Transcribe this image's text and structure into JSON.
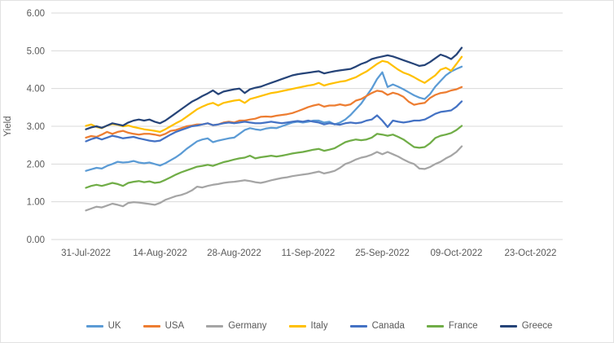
{
  "chart_data": {
    "type": "line",
    "title": "",
    "xlabel": "",
    "ylabel": "Yield",
    "grid": "horizontal",
    "legend_position": "bottom",
    "ylim": [
      0.0,
      6.0
    ],
    "y_tick_values": [
      0.0,
      1.0,
      2.0,
      3.0,
      4.0,
      5.0,
      6.0
    ],
    "y_tick_labels": [
      "0.00",
      "1.00",
      "2.00",
      "3.00",
      "4.00",
      "5.00",
      "6.00"
    ],
    "x_tick_labels": [
      "31-Jul-2022",
      "14-Aug-2022",
      "28-Aug-2022",
      "11-Sep-2022",
      "25-Sep-2022",
      "09-Oct-2022",
      "23-Oct-2022"
    ],
    "x_tick_day_offsets": [
      0,
      14,
      28,
      42,
      56,
      70,
      84
    ],
    "start_date": "31-Jul-2022",
    "sampling": "daily (day offsets 0-71 from 31-Jul-2022 to 10-Oct-2022)",
    "series": [
      {
        "name": "UK",
        "color": "#5B9BD5",
        "values": [
          1.82,
          1.86,
          1.9,
          1.88,
          1.95,
          2.0,
          2.06,
          2.04,
          2.05,
          2.08,
          2.04,
          2.02,
          2.04,
          2.0,
          1.96,
          2.02,
          2.1,
          2.18,
          2.28,
          2.4,
          2.5,
          2.6,
          2.65,
          2.68,
          2.58,
          2.62,
          2.65,
          2.68,
          2.7,
          2.8,
          2.9,
          2.95,
          2.92,
          2.9,
          2.94,
          2.96,
          2.95,
          3.0,
          3.05,
          3.1,
          3.12,
          3.1,
          3.12,
          3.15,
          3.15,
          3.1,
          3.12,
          3.05,
          3.1,
          3.18,
          3.3,
          3.45,
          3.6,
          3.8,
          4.0,
          4.25,
          4.43,
          4.04,
          4.11,
          4.05,
          3.98,
          3.9,
          3.82,
          3.76,
          3.72,
          3.85,
          4.05,
          4.2,
          4.35,
          4.45,
          4.52,
          4.58
        ]
      },
      {
        "name": "USA",
        "color": "#ED7D31",
        "values": [
          2.7,
          2.74,
          2.72,
          2.78,
          2.85,
          2.8,
          2.85,
          2.88,
          2.83,
          2.8,
          2.78,
          2.8,
          2.8,
          2.78,
          2.75,
          2.8,
          2.88,
          2.9,
          2.95,
          3.0,
          3.02,
          3.05,
          3.05,
          3.08,
          3.03,
          3.05,
          3.1,
          3.12,
          3.1,
          3.15,
          3.15,
          3.18,
          3.2,
          3.25,
          3.26,
          3.25,
          3.28,
          3.3,
          3.32,
          3.35,
          3.4,
          3.45,
          3.51,
          3.55,
          3.58,
          3.52,
          3.55,
          3.55,
          3.58,
          3.55,
          3.58,
          3.68,
          3.72,
          3.8,
          3.88,
          3.94,
          3.92,
          3.83,
          3.89,
          3.85,
          3.78,
          3.65,
          3.57,
          3.6,
          3.62,
          3.75,
          3.83,
          3.88,
          3.9,
          3.95,
          3.98,
          4.04
        ]
      },
      {
        "name": "Germany",
        "color": "#A5A5A5",
        "values": [
          0.77,
          0.82,
          0.87,
          0.85,
          0.9,
          0.95,
          0.92,
          0.88,
          0.97,
          0.99,
          0.98,
          0.96,
          0.94,
          0.92,
          0.97,
          1.05,
          1.1,
          1.15,
          1.18,
          1.23,
          1.3,
          1.4,
          1.38,
          1.42,
          1.45,
          1.47,
          1.5,
          1.52,
          1.53,
          1.55,
          1.57,
          1.55,
          1.52,
          1.5,
          1.53,
          1.57,
          1.6,
          1.63,
          1.65,
          1.68,
          1.7,
          1.72,
          1.74,
          1.77,
          1.8,
          1.75,
          1.78,
          1.82,
          1.9,
          2.0,
          2.05,
          2.12,
          2.17,
          2.2,
          2.25,
          2.32,
          2.26,
          2.32,
          2.26,
          2.2,
          2.12,
          2.05,
          2.0,
          1.88,
          1.87,
          1.92,
          2.0,
          2.06,
          2.15,
          2.22,
          2.32,
          2.47
        ]
      },
      {
        "name": "Italy",
        "color": "#FFC000",
        "values": [
          3.01,
          3.05,
          2.98,
          2.95,
          3.02,
          3.06,
          3.04,
          3.0,
          3.02,
          2.98,
          2.95,
          2.92,
          2.9,
          2.88,
          2.85,
          2.92,
          3.0,
          3.08,
          3.15,
          3.25,
          3.35,
          3.45,
          3.52,
          3.58,
          3.62,
          3.55,
          3.62,
          3.65,
          3.68,
          3.7,
          3.62,
          3.72,
          3.76,
          3.8,
          3.84,
          3.88,
          3.9,
          3.93,
          3.96,
          3.99,
          4.02,
          4.05,
          4.08,
          4.1,
          4.15,
          4.08,
          4.12,
          4.15,
          4.18,
          4.2,
          4.25,
          4.3,
          4.38,
          4.45,
          4.55,
          4.65,
          4.73,
          4.7,
          4.6,
          4.5,
          4.42,
          4.37,
          4.3,
          4.22,
          4.15,
          4.25,
          4.35,
          4.5,
          4.55,
          4.47,
          4.65,
          4.84
        ]
      },
      {
        "name": "Canada",
        "color": "#4472C4",
        "values": [
          2.6,
          2.66,
          2.7,
          2.65,
          2.7,
          2.75,
          2.72,
          2.68,
          2.7,
          2.72,
          2.68,
          2.65,
          2.62,
          2.6,
          2.62,
          2.7,
          2.78,
          2.85,
          2.9,
          2.95,
          3.0,
          3.02,
          3.05,
          3.08,
          3.03,
          3.05,
          3.08,
          3.1,
          3.08,
          3.1,
          3.12,
          3.1,
          3.08,
          3.08,
          3.1,
          3.12,
          3.1,
          3.08,
          3.1,
          3.12,
          3.14,
          3.12,
          3.15,
          3.12,
          3.1,
          3.05,
          3.08,
          3.06,
          3.04,
          3.08,
          3.1,
          3.08,
          3.1,
          3.15,
          3.18,
          3.29,
          3.15,
          2.98,
          3.15,
          3.12,
          3.1,
          3.12,
          3.15,
          3.15,
          3.18,
          3.25,
          3.33,
          3.38,
          3.4,
          3.42,
          3.52,
          3.66
        ]
      },
      {
        "name": "France",
        "color": "#70AD47",
        "values": [
          1.37,
          1.42,
          1.45,
          1.42,
          1.46,
          1.5,
          1.47,
          1.42,
          1.5,
          1.53,
          1.55,
          1.52,
          1.54,
          1.5,
          1.52,
          1.58,
          1.65,
          1.72,
          1.78,
          1.83,
          1.88,
          1.93,
          1.95,
          1.98,
          1.95,
          2.0,
          2.05,
          2.08,
          2.12,
          2.15,
          2.17,
          2.22,
          2.15,
          2.18,
          2.2,
          2.22,
          2.2,
          2.22,
          2.25,
          2.28,
          2.3,
          2.32,
          2.35,
          2.38,
          2.4,
          2.35,
          2.38,
          2.42,
          2.5,
          2.58,
          2.62,
          2.65,
          2.63,
          2.65,
          2.7,
          2.8,
          2.78,
          2.75,
          2.78,
          2.72,
          2.65,
          2.55,
          2.45,
          2.43,
          2.45,
          2.55,
          2.69,
          2.75,
          2.78,
          2.82,
          2.9,
          3.01
        ]
      },
      {
        "name": "Greece",
        "color": "#264478",
        "values": [
          2.92,
          2.97,
          3.0,
          2.96,
          3.02,
          3.08,
          3.05,
          3.02,
          3.1,
          3.15,
          3.18,
          3.15,
          3.18,
          3.12,
          3.08,
          3.15,
          3.25,
          3.35,
          3.45,
          3.55,
          3.65,
          3.72,
          3.8,
          3.87,
          3.95,
          3.85,
          3.92,
          3.95,
          3.98,
          4.0,
          3.88,
          3.98,
          4.02,
          4.05,
          4.1,
          4.15,
          4.2,
          4.25,
          4.3,
          4.35,
          4.38,
          4.4,
          4.42,
          4.44,
          4.46,
          4.4,
          4.43,
          4.46,
          4.48,
          4.5,
          4.52,
          4.58,
          4.65,
          4.7,
          4.78,
          4.82,
          4.85,
          4.88,
          4.85,
          4.8,
          4.75,
          4.7,
          4.65,
          4.6,
          4.62,
          4.7,
          4.8,
          4.9,
          4.85,
          4.78,
          4.9,
          5.08
        ]
      }
    ]
  },
  "style": {
    "gridline_color": "#D9D9D9",
    "tick_label_color": "#595959",
    "background_color": "#FFFFFF"
  }
}
